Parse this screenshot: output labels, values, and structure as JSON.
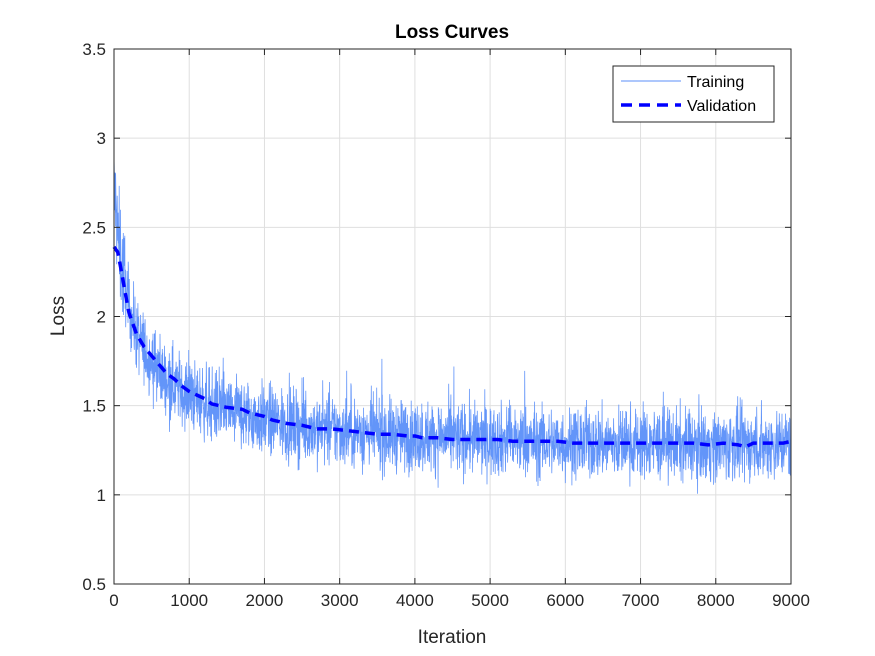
{
  "chart_data": {
    "type": "line",
    "title": "Loss Curves",
    "xlabel": "Iteration",
    "ylabel": "Loss",
    "xlim": [
      0,
      9000
    ],
    "ylim": [
      0.5,
      3.5
    ],
    "xticks": [
      "0",
      "1000",
      "2000",
      "3000",
      "4000",
      "5000",
      "6000",
      "7000",
      "8000",
      "9000"
    ],
    "yticks": [
      "0.5",
      "1",
      "1.5",
      "2",
      "2.5",
      "3",
      "3.5"
    ],
    "grid": true,
    "legend_position": "top-right",
    "series": [
      {
        "name": "Training",
        "style": "solid-thin",
        "color": "#5b8ff9",
        "noise_amplitude": 0.18,
        "x": [
          0,
          50,
          100,
          200,
          300,
          400,
          500,
          700,
          1000,
          1300,
          1600,
          2000,
          2500,
          3000,
          3500,
          4000,
          4500,
          5000,
          5500,
          6000,
          6500,
          7000,
          7500,
          8000,
          8500,
          9000
        ],
        "values": [
          2.75,
          2.45,
          2.3,
          2.05,
          1.9,
          1.82,
          1.75,
          1.65,
          1.56,
          1.5,
          1.46,
          1.42,
          1.38,
          1.36,
          1.34,
          1.33,
          1.32,
          1.31,
          1.3,
          1.29,
          1.29,
          1.29,
          1.28,
          1.28,
          1.28,
          1.29
        ]
      },
      {
        "name": "Validation",
        "style": "dashed-thick",
        "color": "#0000ff",
        "x": [
          0,
          50,
          100,
          150,
          200,
          250,
          300,
          400,
          500,
          600,
          700,
          800,
          900,
          1000,
          1100,
          1200,
          1300,
          1500,
          1700,
          1800,
          2000,
          2100,
          2200,
          2300,
          2500,
          2700,
          2900,
          3100,
          3300,
          3500,
          3700,
          3900,
          4000,
          4100,
          4300,
          4500,
          4700,
          4900,
          5100,
          5300,
          5500,
          5700,
          5900,
          6100,
          6300,
          6500,
          6700,
          6900,
          7100,
          7300,
          7500,
          7700,
          7900,
          8100,
          8300,
          8400,
          8500,
          8700,
          8900,
          9000
        ],
        "values": [
          2.39,
          2.36,
          2.25,
          2.13,
          2.02,
          1.96,
          1.9,
          1.83,
          1.78,
          1.73,
          1.68,
          1.65,
          1.61,
          1.58,
          1.56,
          1.54,
          1.51,
          1.49,
          1.48,
          1.46,
          1.44,
          1.42,
          1.41,
          1.4,
          1.39,
          1.37,
          1.37,
          1.36,
          1.35,
          1.34,
          1.34,
          1.33,
          1.33,
          1.32,
          1.32,
          1.31,
          1.31,
          1.31,
          1.31,
          1.3,
          1.3,
          1.3,
          1.3,
          1.29,
          1.29,
          1.29,
          1.29,
          1.29,
          1.29,
          1.29,
          1.29,
          1.29,
          1.28,
          1.29,
          1.28,
          1.27,
          1.29,
          1.29,
          1.29,
          1.3
        ]
      }
    ]
  }
}
